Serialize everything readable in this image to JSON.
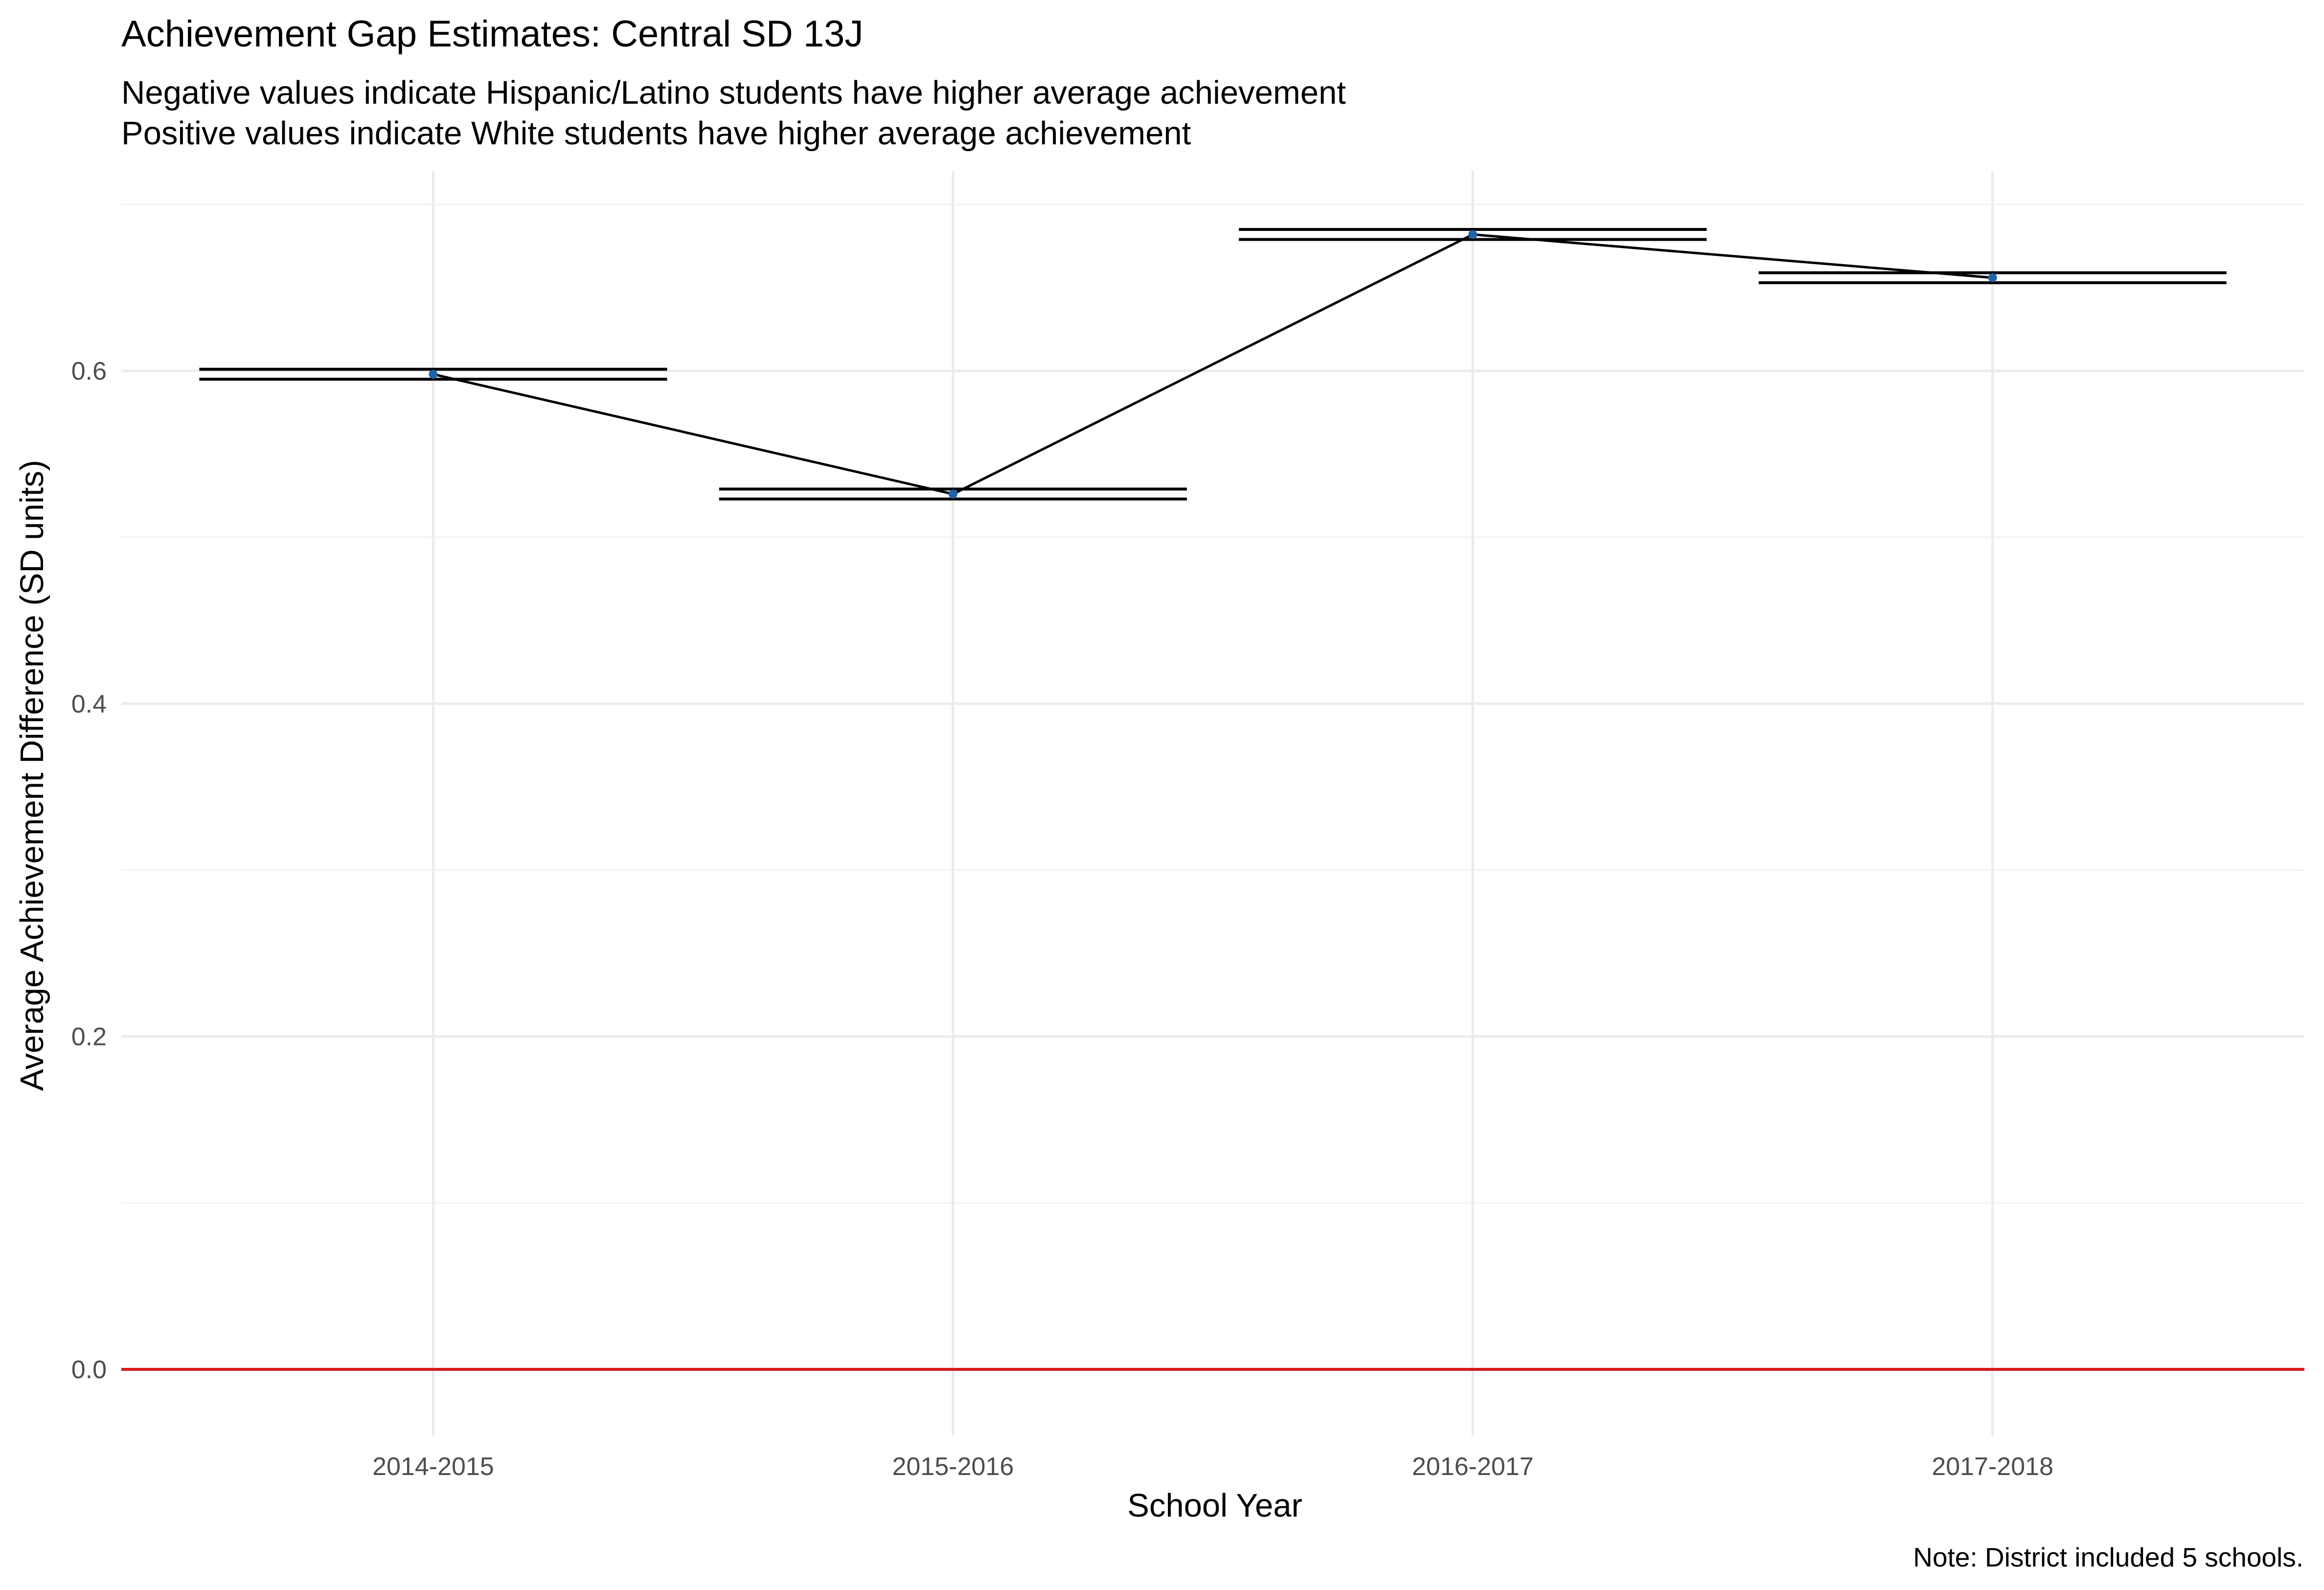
{
  "chart_data": {
    "type": "line",
    "title": "Achievement Gap Estimates: Central SD 13J",
    "subtitle_lines": [
      "Negative values indicate Hispanic/Latino students have higher average achievement",
      "Positive values indicate White students have higher average achievement"
    ],
    "xlabel": "School Year",
    "ylabel": "Average Achievement Difference (SD units)",
    "caption": "Note: District included 5 schools.",
    "categories": [
      "2014-2015",
      "2015-2016",
      "2016-2017",
      "2017-2018"
    ],
    "series": [
      {
        "values": [
          0.598,
          0.526,
          0.682,
          0.656
        ],
        "lower": [
          0.595,
          0.523,
          0.679,
          0.653
        ],
        "upper": [
          0.601,
          0.529,
          0.685,
          0.659
        ]
      }
    ],
    "reference_line": {
      "y": 0.0
    },
    "ylim": [
      -0.04,
      0.72
    ],
    "yticks": [
      0.0,
      0.2,
      0.4,
      0.6
    ],
    "yticks_labels": [
      "0.0",
      "0.2",
      "0.4",
      "0.6"
    ],
    "grid": true,
    "colors": {
      "line": "#000000",
      "point": "#1f63a8",
      "errorbar": "#000000",
      "reference_line": "#d7191c"
    }
  }
}
